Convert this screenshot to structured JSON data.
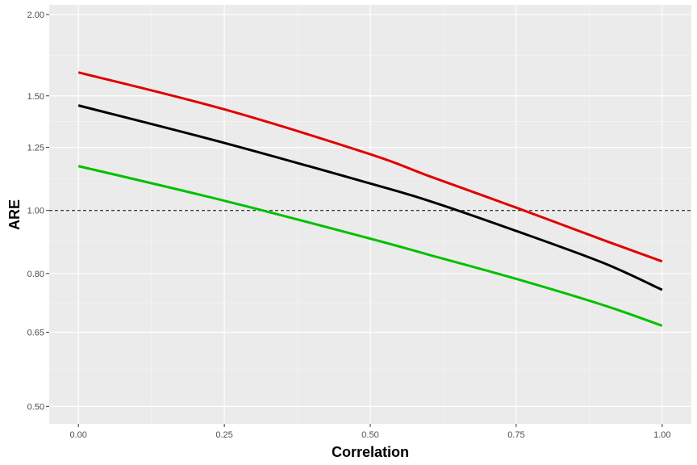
{
  "chart_data": {
    "type": "line",
    "xlabel": "Correlation",
    "ylabel": "ARE",
    "xlim": [
      -0.05,
      1.05
    ],
    "ylim": [
      0.47,
      2.07
    ],
    "y_scale": "log",
    "grid": true,
    "x_ticks": [
      0,
      0.25,
      0.5,
      0.75,
      1
    ],
    "x_tick_labels": [
      "0.00",
      "0.25",
      "0.50",
      "0.75",
      "1.00"
    ],
    "y_ticks": [
      0.5,
      0.65,
      0.8,
      1.0,
      1.25,
      1.5,
      2.0
    ],
    "y_tick_labels": [
      "0.50",
      "0.65",
      "0.80",
      "1.00",
      "1.25",
      "1.50",
      "2.00"
    ],
    "reference_line": {
      "y": 1.0,
      "style": "dashed",
      "color": "#000000"
    },
    "series": [
      {
        "color": "#e00000",
        "x": [
          0,
          0.25,
          0.5,
          0.6,
          0.75,
          0.9,
          1.0
        ],
        "values": [
          1.63,
          1.43,
          1.22,
          1.13,
          1.01,
          0.9,
          0.835
        ]
      },
      {
        "color": "#000000",
        "x": [
          0,
          0.25,
          0.5,
          0.6,
          0.75,
          0.9,
          1.0
        ],
        "values": [
          1.45,
          1.27,
          1.1,
          1.035,
          0.93,
          0.83,
          0.755
        ]
      },
      {
        "color": "#00c000",
        "x": [
          0,
          0.25,
          0.5,
          0.6,
          0.75,
          0.9,
          1.0
        ],
        "values": [
          1.17,
          1.035,
          0.905,
          0.855,
          0.785,
          0.715,
          0.665
        ]
      }
    ]
  }
}
